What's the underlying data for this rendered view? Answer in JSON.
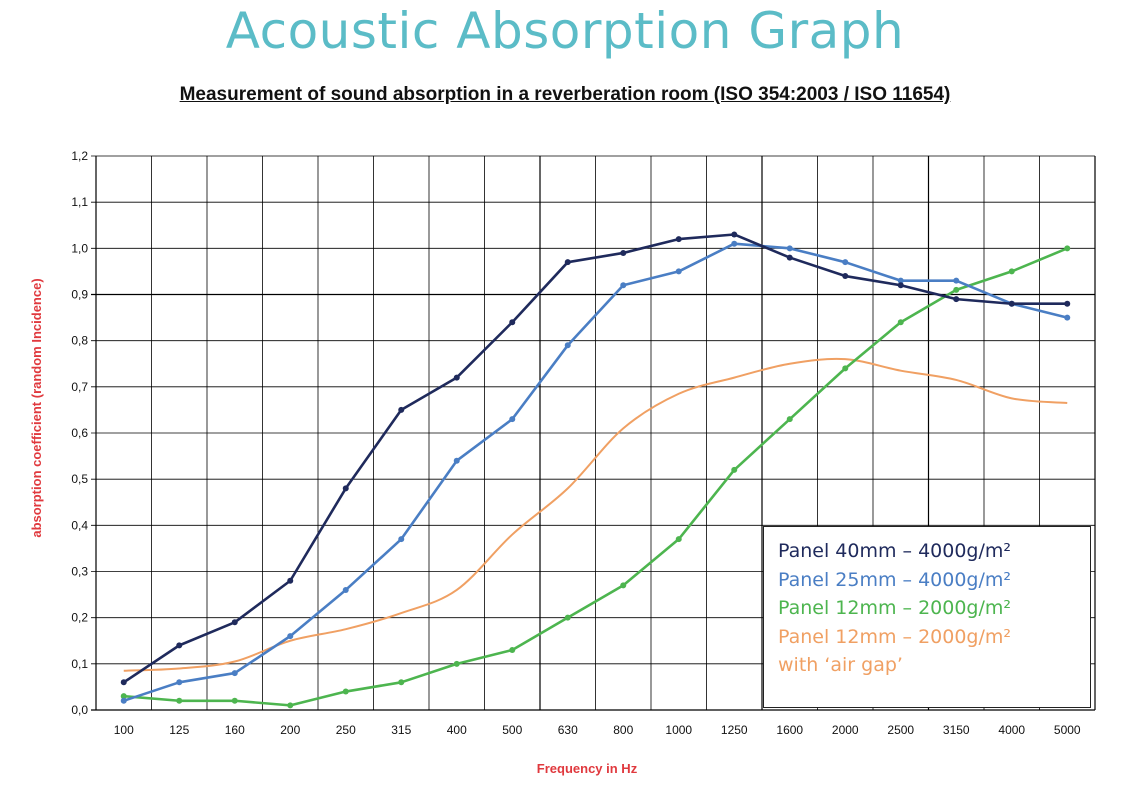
{
  "header": {
    "title": "Acoustic Absorption Graph",
    "subtitle": "Measurement of sound absorption in a reverberation room (ISO 354:2003 / ISO 11654)"
  },
  "chart_data": {
    "type": "line",
    "title": "Measurement of sound absorption in a reverberation room (ISO 354:2003 / ISO 11654)",
    "xlabel": "Frequency in Hz",
    "ylabel": "absorption coefficient (random Incidence)",
    "ylim": [
      0,
      1.2
    ],
    "yticks": [
      "0,0",
      "0,1",
      "0,2",
      "0,3",
      "0,4",
      "0,5",
      "0,6",
      "0,7",
      "0,8",
      "0,9",
      "1,0",
      "1,1",
      "1,2"
    ],
    "categories": [
      "100",
      "125",
      "160",
      "200",
      "250",
      "315",
      "400",
      "500",
      "630",
      "800",
      "1000",
      "1250",
      "1600",
      "2000",
      "2500",
      "3150",
      "4000",
      "5000"
    ],
    "grid": true,
    "legend_position": "bottom-right",
    "series": [
      {
        "name": "Panel 40mm – 4000g/m²",
        "color": "#1f2a5c",
        "markers": true,
        "smooth": false,
        "values": [
          0.06,
          0.14,
          0.19,
          0.28,
          0.48,
          0.65,
          0.72,
          0.84,
          0.97,
          0.99,
          1.02,
          1.03,
          0.98,
          0.94,
          0.92,
          0.89,
          0.88,
          0.88
        ]
      },
      {
        "name": "Panel 25mm – 4000g/m²",
        "color": "#4a7ec4",
        "markers": true,
        "smooth": false,
        "values": [
          0.02,
          0.06,
          0.08,
          0.16,
          0.26,
          0.37,
          0.54,
          0.63,
          0.79,
          0.92,
          0.95,
          1.01,
          1.0,
          0.97,
          0.93,
          0.93,
          0.88,
          0.85
        ]
      },
      {
        "name": "Panel 12mm – 2000g/m²",
        "color": "#4db54f",
        "markers": true,
        "smooth": false,
        "values": [
          0.03,
          0.02,
          0.02,
          0.01,
          0.04,
          0.06,
          0.1,
          0.13,
          0.2,
          0.27,
          0.37,
          0.52,
          0.63,
          0.74,
          0.84,
          0.91,
          0.95,
          1.0
        ]
      },
      {
        "name": "Panel 12mm – 2000g/m² with ‘air gap’",
        "color": "#f0a063",
        "markers": false,
        "smooth": true,
        "values": [
          0.085,
          0.09,
          0.105,
          0.15,
          0.175,
          0.21,
          0.26,
          0.38,
          0.48,
          0.61,
          0.685,
          0.72,
          0.75,
          0.76,
          0.735,
          0.715,
          0.675,
          0.665
        ]
      }
    ]
  },
  "legend": {
    "lines": [
      {
        "text": "Panel 40mm – 4000g/m²",
        "color": "#1f2a5c"
      },
      {
        "text": "Panel 25mm – 4000g/m²",
        "color": "#4a7ec4"
      },
      {
        "text": "Panel 12mm – 2000g/m²",
        "color": "#4db54f"
      },
      {
        "text": "Panel 12mm – 2000g/m²",
        "color": "#f0a063"
      },
      {
        "text": "with ‘air gap’",
        "color": "#f0a063"
      }
    ]
  }
}
